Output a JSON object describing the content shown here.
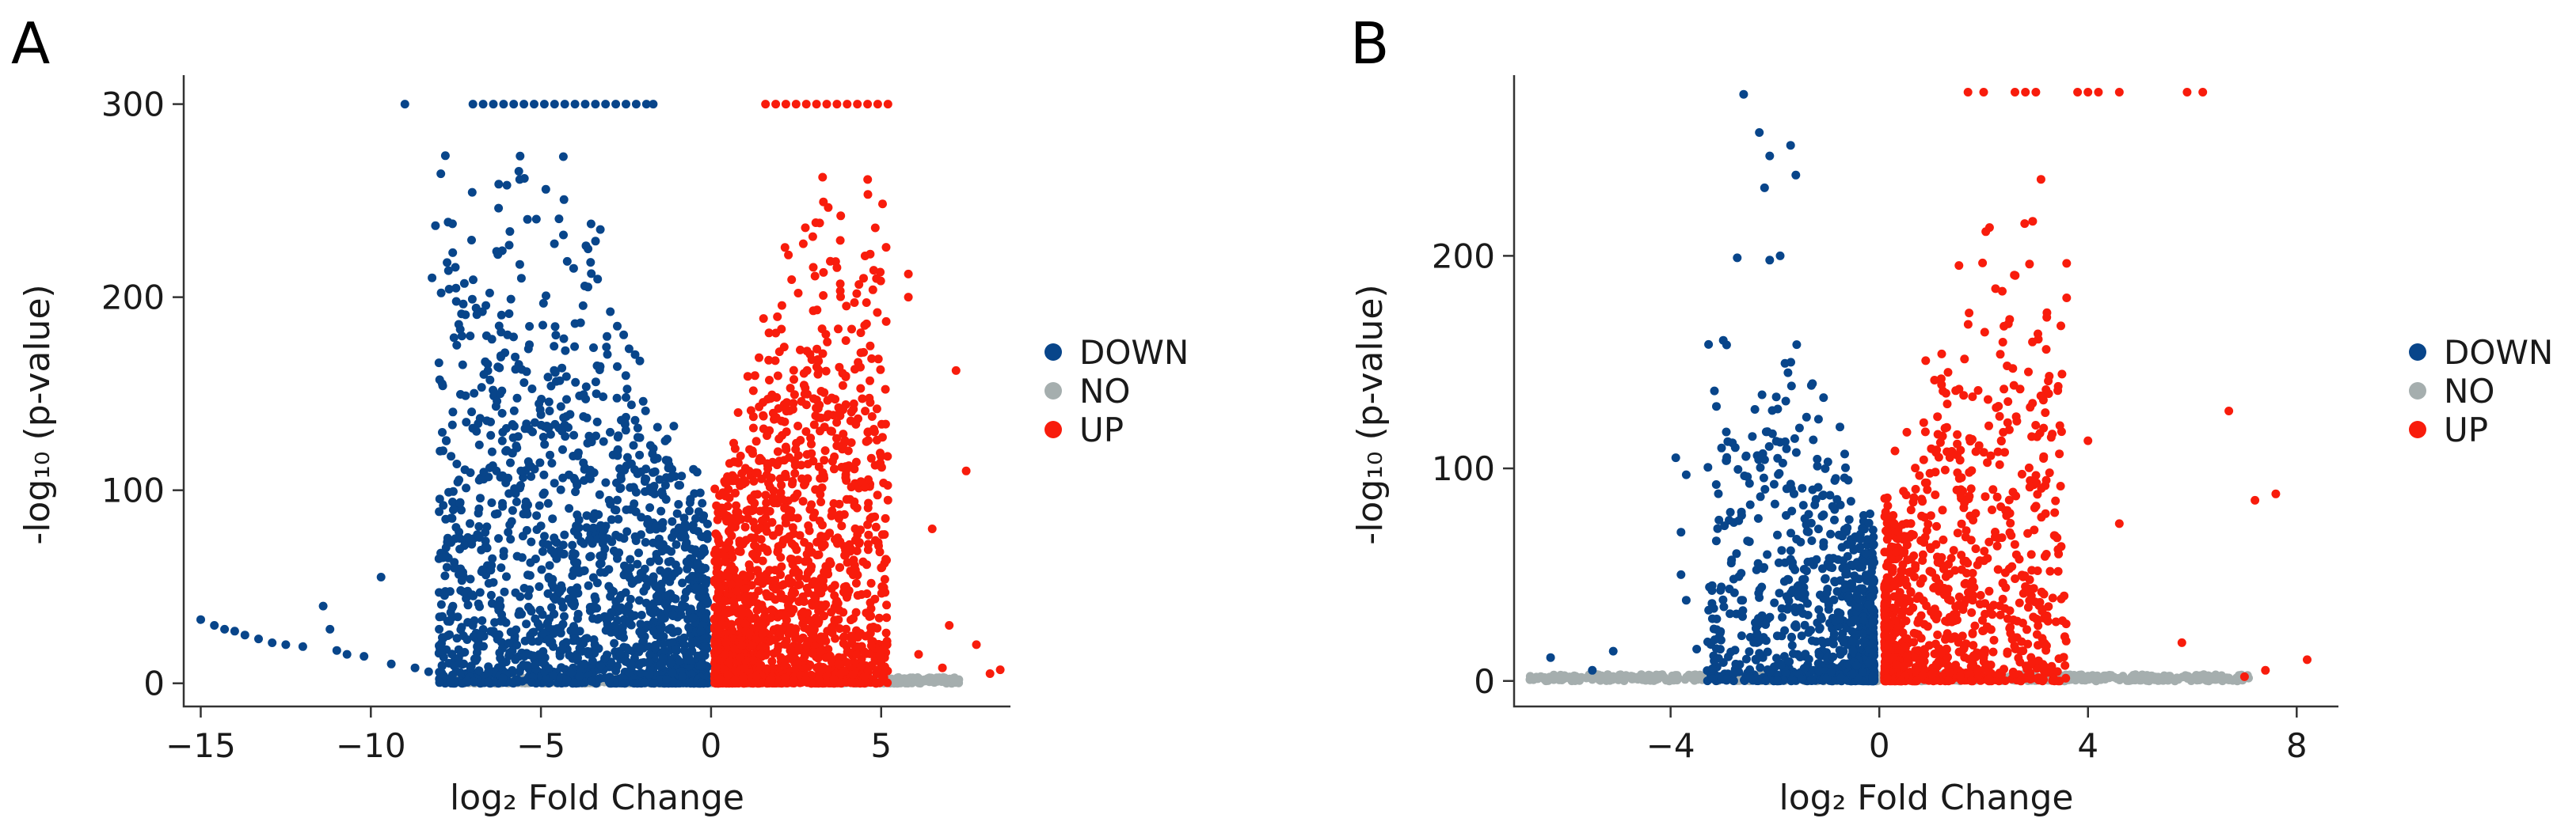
{
  "chart_data": [
    {
      "type": "scatter",
      "panel": "A",
      "xlabel": "log₂ Fold Change",
      "ylabel": "-log₁₀ (p-value)",
      "xlim": [
        -15.5,
        8.8
      ],
      "ylim": [
        -12,
        315
      ],
      "xticks": [
        -15,
        -10,
        -5,
        0,
        5
      ],
      "yticks": [
        0,
        100,
        200,
        300
      ],
      "xtick_labels": [
        "−15",
        "−10",
        "−5",
        "0",
        "5"
      ],
      "ytick_labels": [
        "0",
        "100",
        "200",
        "300"
      ],
      "legend": [
        "DOWN",
        "NO",
        "UP"
      ],
      "legend_position": "right",
      "series": [
        {
          "name": "DOWN",
          "color": "#08458a",
          "generated": {
            "seed": 11,
            "count": 1700,
            "xmin": -8.0,
            "xmax": -0.1,
            "ymax": 285,
            "side": "left",
            "steep": 1.25
          },
          "points": [
            [
              -15.0,
              33
            ],
            [
              -14.6,
              30
            ],
            [
              -14.3,
              28
            ],
            [
              -14.0,
              27
            ],
            [
              -13.7,
              25
            ],
            [
              -13.3,
              23
            ],
            [
              -12.9,
              21
            ],
            [
              -12.5,
              20
            ],
            [
              -12.0,
              19
            ],
            [
              -11.4,
              40
            ],
            [
              -11.2,
              28
            ],
            [
              -11.0,
              17
            ],
            [
              -10.7,
              15
            ],
            [
              -10.2,
              14
            ],
            [
              -9.7,
              55
            ],
            [
              -9.4,
              10
            ],
            [
              -9.0,
              300
            ],
            [
              -8.7,
              8
            ],
            [
              -8.3,
              6
            ],
            [
              -8.2,
              210
            ],
            [
              -8.1,
              237
            ],
            [
              -7.9,
              130
            ],
            [
              -7.8,
              85
            ],
            [
              -7.6,
              238
            ],
            [
              -7.3,
              165
            ],
            [
              -7.0,
              30
            ],
            [
              -6.6,
              180
            ],
            [
              -6.2,
              150
            ],
            [
              -6.0,
              258
            ],
            [
              -7.0,
              300
            ],
            [
              -6.7,
              300
            ],
            [
              -6.4,
              300
            ],
            [
              -6.1,
              300
            ],
            [
              -5.8,
              300
            ],
            [
              -5.5,
              300
            ],
            [
              -5.2,
              300
            ],
            [
              -4.9,
              300
            ],
            [
              -4.6,
              300
            ],
            [
              -4.3,
              300
            ],
            [
              -4.0,
              300
            ],
            [
              -3.7,
              300
            ],
            [
              -3.4,
              300
            ],
            [
              -3.1,
              300
            ],
            [
              -2.8,
              300
            ],
            [
              -2.5,
              300
            ],
            [
              -2.2,
              300
            ],
            [
              -1.9,
              300
            ],
            [
              -1.7,
              300
            ]
          ]
        },
        {
          "name": "NO",
          "color": "#a5aeae",
          "generated": {
            "seed": 23,
            "count": 800,
            "xmin": -7.5,
            "xmax": 7.3,
            "ymax": 3
          }
        },
        {
          "name": "UP",
          "color": "#f81c0c",
          "generated": {
            "seed": 37,
            "count": 1650,
            "xmin": 0.1,
            "xmax": 5.2,
            "ymax": 280,
            "side": "right",
            "steep": 1.35
          },
          "points": [
            [
              5.8,
              212
            ],
            [
              5.8,
              200
            ],
            [
              6.5,
              80
            ],
            [
              7.0,
              30
            ],
            [
              7.2,
              162
            ],
            [
              7.5,
              110
            ],
            [
              7.8,
              20
            ],
            [
              8.2,
              5
            ],
            [
              8.5,
              7
            ],
            [
              6.1,
              15
            ],
            [
              6.8,
              8
            ],
            [
              1.6,
              300
            ],
            [
              1.9,
              300
            ],
            [
              2.2,
              300
            ],
            [
              2.5,
              300
            ],
            [
              2.8,
              300
            ],
            [
              3.1,
              300
            ],
            [
              3.4,
              300
            ],
            [
              3.7,
              300
            ],
            [
              4.0,
              300
            ],
            [
              4.3,
              300
            ],
            [
              4.6,
              300
            ],
            [
              4.9,
              300
            ],
            [
              5.2,
              300
            ]
          ]
        }
      ]
    },
    {
      "type": "scatter",
      "panel": "B",
      "xlabel": "log₂ Fold Change",
      "ylabel": "-log₁₀ (p-value)",
      "xlim": [
        -7.0,
        8.8
      ],
      "ylim": [
        -12,
        285
      ],
      "xticks": [
        -4,
        0,
        4,
        8
      ],
      "yticks": [
        0,
        100,
        200
      ],
      "xtick_labels": [
        "−4",
        "0",
        "4",
        "8"
      ],
      "ytick_labels": [
        "0",
        "100",
        "200"
      ],
      "legend": [
        "DOWN",
        "NO",
        "UP"
      ],
      "legend_position": "right",
      "series": [
        {
          "name": "DOWN",
          "color": "#08458a",
          "generated": {
            "seed": 53,
            "count": 900,
            "xmin": -3.3,
            "xmax": -0.1,
            "ymax": 200,
            "side": "left",
            "steep": 2.0
          },
          "points": [
            [
              -6.3,
              11
            ],
            [
              -5.5,
              5
            ],
            [
              -5.1,
              14
            ],
            [
              -3.9,
              105
            ],
            [
              -3.8,
              70
            ],
            [
              -3.8,
              50
            ],
            [
              -3.7,
              97
            ],
            [
              -3.7,
              38
            ],
            [
              -3.5,
              15
            ],
            [
              -2.6,
              276
            ],
            [
              -2.3,
              258
            ],
            [
              -2.2,
              232
            ],
            [
              -2.1,
              247
            ],
            [
              -1.7,
              252
            ],
            [
              -1.6,
              238
            ],
            [
              -2.1,
              198
            ],
            [
              -1.9,
              200
            ]
          ]
        },
        {
          "name": "NO",
          "color": "#a5aeae",
          "generated": {
            "seed": 71,
            "count": 700,
            "xmin": -6.7,
            "xmax": 7.1,
            "ymax": 3
          }
        },
        {
          "name": "UP",
          "color": "#f81c0c",
          "generated": {
            "seed": 89,
            "count": 1000,
            "xmin": 0.1,
            "xmax": 3.6,
            "ymax": 240,
            "side": "right",
            "steep": 1.9
          },
          "points": [
            [
              1.7,
              277
            ],
            [
              2.0,
              277
            ],
            [
              2.6,
              277
            ],
            [
              2.8,
              277
            ],
            [
              3.0,
              277
            ],
            [
              3.8,
              277
            ],
            [
              4.0,
              277
            ],
            [
              4.2,
              277
            ],
            [
              4.6,
              277
            ],
            [
              5.9,
              277
            ],
            [
              6.2,
              277
            ],
            [
              3.1,
              236
            ],
            [
              3.2,
              156
            ],
            [
              4.0,
              113
            ],
            [
              4.6,
              74
            ],
            [
              5.8,
              18
            ],
            [
              6.7,
              127
            ],
            [
              7.2,
              85
            ],
            [
              7.6,
              88
            ],
            [
              7.4,
              5
            ],
            [
              8.2,
              10
            ],
            [
              7.0,
              2
            ]
          ]
        }
      ]
    }
  ]
}
